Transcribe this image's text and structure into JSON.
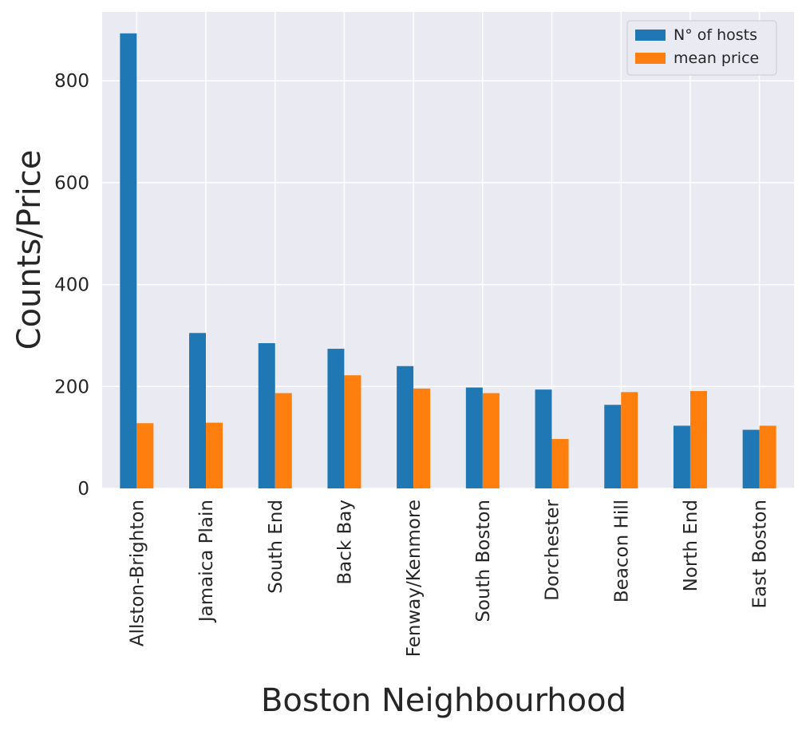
{
  "chart_data": {
    "type": "bar",
    "title": "",
    "xlabel": "Boston Neighbourhood",
    "ylabel": "Counts/Price",
    "categories": [
      "Allston-Brighton",
      "Jamaica Plain",
      "South End",
      "Back Bay",
      "Fenway/Kenmore",
      "South Boston",
      "Dorchester",
      "Beacon Hill",
      "North End",
      "East Boston"
    ],
    "series": [
      {
        "name": "N° of hosts",
        "color": "#1f77b4",
        "values": [
          893,
          305,
          285,
          274,
          240,
          198,
          194,
          164,
          123,
          115
        ]
      },
      {
        "name": "mean price",
        "color": "#ff7f0e",
        "values": [
          128,
          129,
          187,
          222,
          196,
          187,
          97,
          189,
          191,
          123
        ]
      }
    ],
    "ylim": [
      0,
      935
    ],
    "yticks": [
      0,
      200,
      400,
      600,
      800
    ],
    "grid": true,
    "legend_position": "top-right"
  }
}
